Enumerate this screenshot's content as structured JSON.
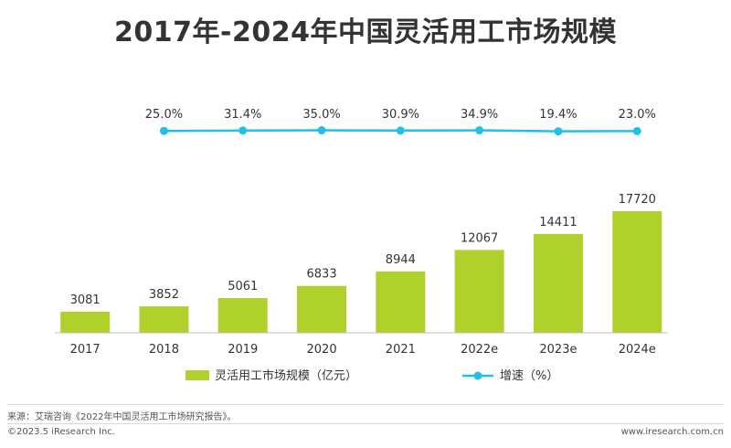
{
  "chart_data": {
    "type": "bar",
    "title": "2017年-2024年中国灵活用工市场规模",
    "categories": [
      "2017",
      "2018",
      "2019",
      "2020",
      "2021",
      "2022e",
      "2023e",
      "2024e"
    ],
    "series": [
      {
        "name": "灵活用工市场规模（亿元）",
        "type": "bar",
        "values": [
          3081,
          3852,
          5061,
          6833,
          8944,
          12067,
          14411,
          17720
        ],
        "labels": [
          "3081",
          "3852",
          "5061",
          "6833",
          "8944",
          "12067",
          "14411",
          "17720"
        ],
        "color": "#b0d02c"
      },
      {
        "name": "增速（%）",
        "type": "line",
        "values": [
          25.0,
          31.4,
          35.0,
          30.9,
          34.9,
          19.4,
          23.0
        ],
        "labels": [
          "25.0%",
          "31.4%",
          "35.0%",
          "30.9%",
          "34.9%",
          "19.4%",
          "23.0%"
        ],
        "x": [
          "2018",
          "2019",
          "2020",
          "2021",
          "2022e",
          "2023e",
          "2024e"
        ],
        "color": "#23c0e6"
      }
    ],
    "legend_position": "bottom",
    "grid": false,
    "ylim": [
      0,
      17720
    ]
  },
  "footer": {
    "source": "来源：艾瑞咨询《2022年中国灵活用工市场研究报告》。",
    "copyright": "©2023.5 iResearch Inc.",
    "website": "www.iresearch.com.cn"
  }
}
